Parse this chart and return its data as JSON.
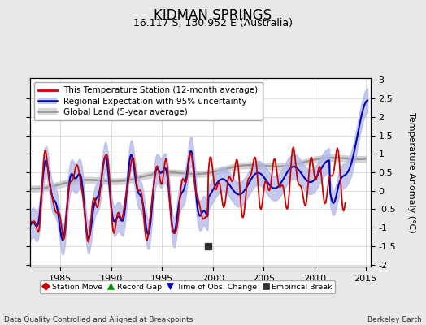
{
  "title": "KIDMAN SPRINGS",
  "subtitle": "16.117 S, 130.952 E (Australia)",
  "xlabel_bottom": "Data Quality Controlled and Aligned at Breakpoints",
  "xlabel_right": "Berkeley Earth",
  "ylabel": "Temperature Anomaly (°C)",
  "xlim": [
    1982.0,
    2015.5
  ],
  "ylim": [
    -2.05,
    3.05
  ],
  "yticks": [
    -2,
    -1.5,
    -1,
    -0.5,
    0,
    0.5,
    1,
    1.5,
    2,
    2.5,
    3
  ],
  "xticks": [
    1985,
    1990,
    1995,
    2000,
    2005,
    2010,
    2015
  ],
  "background_color": "#e8e8e8",
  "plot_bg_color": "#ffffff",
  "red_line_color": "#cc0000",
  "blue_line_color": "#0000bb",
  "blue_fill_color": "#b0b8e8",
  "gray_line_color": "#999999",
  "gray_fill_color": "#cccccc",
  "legend_items": [
    "This Temperature Station (12-month average)",
    "Regional Expectation with 95% uncertainty",
    "Global Land (5-year average)"
  ],
  "marker_legend": [
    {
      "marker": "D",
      "color": "#cc0000",
      "label": "Station Move"
    },
    {
      "marker": "^",
      "color": "#009900",
      "label": "Record Gap"
    },
    {
      "marker": "v",
      "color": "#0000bb",
      "label": "Time of Obs. Change"
    },
    {
      "marker": "s",
      "color": "#333333",
      "label": "Empirical Break"
    }
  ],
  "empirical_break_x": 1999.5,
  "empirical_break_y": -1.5,
  "title_fontsize": 12,
  "subtitle_fontsize": 9,
  "tick_fontsize": 8,
  "ylabel_fontsize": 8
}
